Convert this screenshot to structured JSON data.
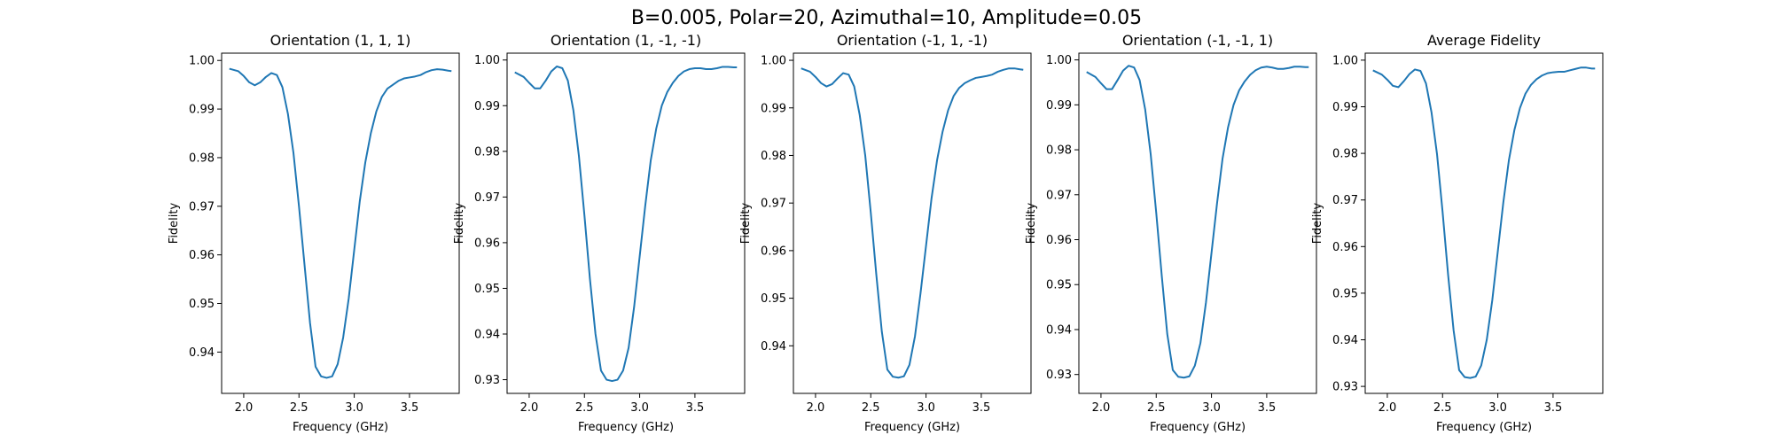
{
  "figure": {
    "suptitle": "B=0.005, Polar=20, Azimuthal=10, Amplitude=0.05"
  },
  "style": {
    "line_color": "#1f77b4",
    "axis_color": "#000000",
    "background": "#ffffff"
  },
  "chart_data": [
    {
      "type": "line",
      "title": "Orientation (1, 1, 1)",
      "xlabel": "Frequency (GHz)",
      "ylabel": "Fidelity",
      "xlim": [
        1.8,
        3.95
      ],
      "ylim": [
        0.9315,
        1.0015
      ],
      "xticks": [
        "2.0",
        "2.5",
        "3.0",
        "3.5"
      ],
      "yticks": [
        "0.94",
        "0.95",
        "0.96",
        "0.97",
        "0.98",
        "0.99",
        "1.00"
      ],
      "grid": false,
      "series": [
        {
          "x": [
            1.87,
            1.95,
            2.0,
            2.05,
            2.1,
            2.15,
            2.2,
            2.25,
            2.3,
            2.35,
            2.4,
            2.45,
            2.5,
            2.55,
            2.6,
            2.65,
            2.7,
            2.75,
            2.8,
            2.85,
            2.9,
            2.95,
            3.0,
            3.05,
            3.1,
            3.15,
            3.2,
            3.25,
            3.3,
            3.35,
            3.4,
            3.45,
            3.5,
            3.55,
            3.6,
            3.65,
            3.7,
            3.75,
            3.8,
            3.85,
            3.88
          ],
          "y": [
            0.9983,
            0.9978,
            0.9968,
            0.9955,
            0.9949,
            0.9955,
            0.9966,
            0.9974,
            0.997,
            0.9945,
            0.989,
            0.981,
            0.97,
            0.958,
            0.946,
            0.937,
            0.935,
            0.9347,
            0.935,
            0.9375,
            0.943,
            0.951,
            0.961,
            0.971,
            0.979,
            0.985,
            0.9895,
            0.9925,
            0.9942,
            0.995,
            0.9958,
            0.9963,
            0.9965,
            0.9967,
            0.997,
            0.9976,
            0.998,
            0.9982,
            0.9981,
            0.9979,
            0.9978
          ]
        }
      ]
    },
    {
      "type": "line",
      "title": "Orientation (1, -1, -1)",
      "xlabel": "Frequency (GHz)",
      "ylabel": "Fidelity",
      "xlim": [
        1.8,
        3.95
      ],
      "ylim": [
        0.927,
        1.0015
      ],
      "xticks": [
        "2.0",
        "2.5",
        "3.0",
        "3.5"
      ],
      "yticks": [
        "0.93",
        "0.94",
        "0.95",
        "0.96",
        "0.97",
        "0.98",
        "0.99",
        "1.00"
      ],
      "grid": false,
      "series": [
        {
          "x": [
            1.87,
            1.95,
            2.0,
            2.05,
            2.1,
            2.15,
            2.2,
            2.25,
            2.3,
            2.35,
            2.4,
            2.45,
            2.5,
            2.55,
            2.6,
            2.65,
            2.7,
            2.75,
            2.8,
            2.85,
            2.9,
            2.95,
            3.0,
            3.05,
            3.1,
            3.15,
            3.2,
            3.25,
            3.3,
            3.35,
            3.4,
            3.45,
            3.5,
            3.55,
            3.6,
            3.65,
            3.7,
            3.75,
            3.8,
            3.85,
            3.88
          ],
          "y": [
            0.9973,
            0.9963,
            0.995,
            0.9938,
            0.9938,
            0.9955,
            0.9975,
            0.9986,
            0.9982,
            0.9955,
            0.989,
            0.979,
            0.966,
            0.952,
            0.94,
            0.932,
            0.93,
            0.9297,
            0.93,
            0.932,
            0.937,
            0.946,
            0.957,
            0.968,
            0.978,
            0.985,
            0.99,
            0.993,
            0.995,
            0.9965,
            0.9975,
            0.998,
            0.9982,
            0.9982,
            0.998,
            0.998,
            0.9982,
            0.9985,
            0.9985,
            0.9984,
            0.9984
          ]
        }
      ]
    },
    {
      "type": "line",
      "title": "Orientation (-1, 1, -1)",
      "xlabel": "Frequency (GHz)",
      "ylabel": "Fidelity",
      "xlim": [
        1.8,
        3.95
      ],
      "ylim": [
        0.93,
        1.0015
      ],
      "xticks": [
        "2.0",
        "2.5",
        "3.0",
        "3.5"
      ],
      "yticks": [
        "0.94",
        "0.95",
        "0.96",
        "0.97",
        "0.98",
        "0.99",
        "1.00"
      ],
      "grid": false,
      "series": [
        {
          "x": [
            1.87,
            1.95,
            2.0,
            2.05,
            2.1,
            2.15,
            2.2,
            2.25,
            2.3,
            2.35,
            2.4,
            2.45,
            2.5,
            2.55,
            2.6,
            2.65,
            2.7,
            2.75,
            2.8,
            2.85,
            2.9,
            2.95,
            3.0,
            3.05,
            3.1,
            3.15,
            3.2,
            3.25,
            3.3,
            3.35,
            3.4,
            3.45,
            3.5,
            3.55,
            3.6,
            3.65,
            3.7,
            3.75,
            3.8,
            3.85,
            3.88
          ],
          "y": [
            0.9983,
            0.9976,
            0.9965,
            0.9952,
            0.9945,
            0.995,
            0.9962,
            0.9973,
            0.997,
            0.9945,
            0.9885,
            0.98,
            0.968,
            0.955,
            0.943,
            0.935,
            0.9335,
            0.9333,
            0.9336,
            0.936,
            0.942,
            0.951,
            0.961,
            0.971,
            0.979,
            0.985,
            0.9895,
            0.9925,
            0.9942,
            0.9952,
            0.9958,
            0.9963,
            0.9965,
            0.9967,
            0.997,
            0.9976,
            0.998,
            0.9983,
            0.9983,
            0.9981,
            0.998
          ]
        }
      ]
    },
    {
      "type": "line",
      "title": "Orientation (-1, -1, 1)",
      "xlabel": "Frequency (GHz)",
      "ylabel": "Fidelity",
      "xlim": [
        1.8,
        3.95
      ],
      "ylim": [
        0.9258,
        1.0015
      ],
      "xticks": [
        "2.0",
        "2.5",
        "3.0",
        "3.5"
      ],
      "yticks": [
        "0.93",
        "0.94",
        "0.95",
        "0.96",
        "0.97",
        "0.98",
        "0.99",
        "1.00"
      ],
      "grid": false,
      "series": [
        {
          "x": [
            1.87,
            1.95,
            2.0,
            2.05,
            2.1,
            2.15,
            2.2,
            2.25,
            2.3,
            2.35,
            2.4,
            2.45,
            2.5,
            2.55,
            2.6,
            2.65,
            2.7,
            2.75,
            2.8,
            2.85,
            2.9,
            2.95,
            3.0,
            3.05,
            3.1,
            3.15,
            3.2,
            3.25,
            3.3,
            3.35,
            3.4,
            3.45,
            3.5,
            3.55,
            3.6,
            3.65,
            3.7,
            3.75,
            3.8,
            3.85,
            3.88
          ],
          "y": [
            0.9973,
            0.9962,
            0.9948,
            0.9935,
            0.9935,
            0.9955,
            0.9976,
            0.9987,
            0.9983,
            0.9955,
            0.989,
            0.979,
            0.966,
            0.952,
            0.939,
            0.931,
            0.9295,
            0.9293,
            0.9296,
            0.932,
            0.937,
            0.946,
            0.957,
            0.968,
            0.978,
            0.985,
            0.99,
            0.9932,
            0.9952,
            0.9967,
            0.9977,
            0.9983,
            0.9985,
            0.9983,
            0.998,
            0.998,
            0.9982,
            0.9985,
            0.9985,
            0.9984,
            0.9984
          ]
        }
      ]
    },
    {
      "type": "line",
      "title": "Average Fidelity",
      "xlabel": "Frequency (GHz)",
      "ylabel": "Fidelity",
      "xlim": [
        1.8,
        3.95
      ],
      "ylim": [
        0.9285,
        1.0015
      ],
      "xticks": [
        "2.0",
        "2.5",
        "3.0",
        "3.5"
      ],
      "yticks": [
        "0.93",
        "0.94",
        "0.95",
        "0.96",
        "0.97",
        "0.98",
        "0.99",
        "1.00"
      ],
      "grid": false,
      "series": [
        {
          "x": [
            1.87,
            1.95,
            2.0,
            2.05,
            2.1,
            2.15,
            2.2,
            2.25,
            2.3,
            2.35,
            2.4,
            2.45,
            2.5,
            2.55,
            2.6,
            2.65,
            2.7,
            2.75,
            2.8,
            2.85,
            2.9,
            2.95,
            3.0,
            3.05,
            3.1,
            3.15,
            3.2,
            3.25,
            3.3,
            3.35,
            3.4,
            3.45,
            3.5,
            3.55,
            3.6,
            3.65,
            3.7,
            3.75,
            3.8,
            3.85,
            3.88
          ],
          "y": [
            0.9978,
            0.9969,
            0.9958,
            0.9945,
            0.9942,
            0.9955,
            0.997,
            0.998,
            0.9977,
            0.995,
            0.9888,
            0.9798,
            0.9675,
            0.954,
            0.942,
            0.9335,
            0.932,
            0.9318,
            0.9321,
            0.9345,
            0.94,
            0.9485,
            0.959,
            0.9695,
            0.9785,
            0.985,
            0.9897,
            0.9928,
            0.9947,
            0.9959,
            0.9967,
            0.9972,
            0.9974,
            0.9975,
            0.9975,
            0.9978,
            0.9981,
            0.9984,
            0.9984,
            0.9982,
            0.9982
          ]
        }
      ]
    }
  ]
}
